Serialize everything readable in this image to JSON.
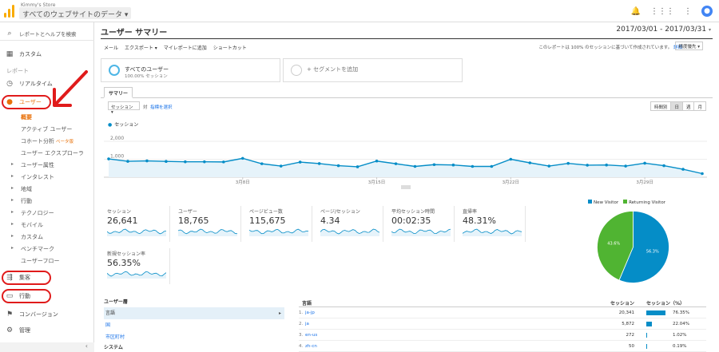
{
  "topbar": {
    "account": "Kimmy's Store",
    "property": "すべてのウェブサイトのデータ"
  },
  "sidebar": {
    "search": "レポートとヘルプを検索",
    "custom": "カスタム",
    "reports_label": "レポート",
    "realtime": "リアルタイム",
    "users": "ユーザー",
    "users_sub": [
      {
        "label": "概要",
        "active": true
      },
      {
        "label": "アクティブ ユーザー"
      },
      {
        "label": "コホート分析",
        "badge": "ベータ版"
      },
      {
        "label": "ユーザー エクスプローラ"
      },
      {
        "label": "ユーザー属性",
        "arrow": true
      },
      {
        "label": "インタレスト",
        "arrow": true
      },
      {
        "label": "地域",
        "arrow": true
      },
      {
        "label": "行動",
        "arrow": true
      },
      {
        "label": "テクノロジー",
        "arrow": true
      },
      {
        "label": "モバイル",
        "arrow": true
      },
      {
        "label": "カスタム",
        "arrow": true
      },
      {
        "label": "ベンチマーク",
        "arrow": true
      },
      {
        "label": "ユーザーフロー"
      }
    ],
    "acquisition": "集客",
    "behavior": "行動",
    "conversions": "コンバージョン",
    "admin": "管理"
  },
  "main": {
    "title": "ユーザー サマリー",
    "date_range": "2017/03/01 - 2017/03/31",
    "toolbar": [
      "メール",
      "エクスポート ▾",
      "マイレポートに追加",
      "ショートカット"
    ],
    "sample_note": "このレポートは 100% のセッションに基づいて作成されています。",
    "sample_link": "詳細",
    "sample_select": "精度優先",
    "segment1_title": "すべてのユーザー",
    "segment1_sub": "100.00% セッション",
    "segment2_title": "+ セグメントを追加",
    "tab": "サマリー",
    "metric_select": "セッション",
    "vs": "対",
    "pick_metric": "指標を選択",
    "granularity": [
      "時間別",
      "日",
      "週",
      "月"
    ],
    "granularity_selected": 1,
    "legend": "セッション"
  },
  "chart_data": [
    {
      "type": "line",
      "series": [
        {
          "name": "セッション",
          "values": [
            1020,
            885,
            910,
            880,
            860,
            860,
            850,
            1050,
            750,
            620,
            840,
            760,
            640,
            580,
            900,
            750,
            600,
            700,
            680,
            600,
            600,
            1000,
            800,
            620,
            770,
            670,
            680,
            620,
            780,
            640,
            440,
            200
          ]
        }
      ],
      "y_ticks": [
        "2,000",
        "1,000"
      ],
      "x_tick_labels": [
        "3月8日",
        "3月15日",
        "3月22日",
        "3月29日"
      ],
      "ylim": [
        0,
        2400
      ],
      "color": "#058dc7",
      "fill": "#e6f3fa"
    },
    {
      "type": "pie",
      "series": [
        {
          "values": [
            56.35,
            43.65
          ]
        }
      ],
      "legend": [
        "New Visitor",
        "Returning Visitor"
      ],
      "slice_labels": [
        "56.3%",
        "43.6%"
      ],
      "colors": [
        "#058dc7",
        "#50b432"
      ]
    }
  ],
  "scorecards": [
    {
      "label": "セッション",
      "value": "26,641"
    },
    {
      "label": "ユーザー",
      "value": "18,765"
    },
    {
      "label": "ページビュー数",
      "value": "115,675"
    },
    {
      "label": "ページ/セッション",
      "value": "4.34"
    },
    {
      "label": "平均セッション時間",
      "value": "00:02:35"
    },
    {
      "label": "直帰率",
      "value": "48.31%"
    },
    {
      "label": "新規セッション率",
      "value": "56.35%"
    }
  ],
  "left_table": {
    "heading": "ユーザー層",
    "items": [
      {
        "label": "言語",
        "selected": true
      },
      {
        "label": "国"
      },
      {
        "label": "市区町村"
      }
    ],
    "section2": "システム"
  },
  "lang_table": {
    "col1": "言語",
    "col2": "セッション",
    "col3": "セッション（%）",
    "rows": [
      {
        "n": "1.",
        "lang": "ja-jp",
        "sessions": "20,341",
        "pct": "76.35%",
        "share": 76.35
      },
      {
        "n": "2.",
        "lang": "ja",
        "sessions": "5,872",
        "pct": "22.04%",
        "share": 22.04
      },
      {
        "n": "3.",
        "lang": "en-us",
        "sessions": "272",
        "pct": "1.02%",
        "share": 1.02
      },
      {
        "n": "4.",
        "lang": "zh-cn",
        "sessions": "50",
        "pct": "0.19%",
        "share": 0.19
      }
    ]
  },
  "colors": {
    "accent": "#058dc7",
    "highlight": "#e01b1b",
    "active_nav": "#e8710a"
  }
}
